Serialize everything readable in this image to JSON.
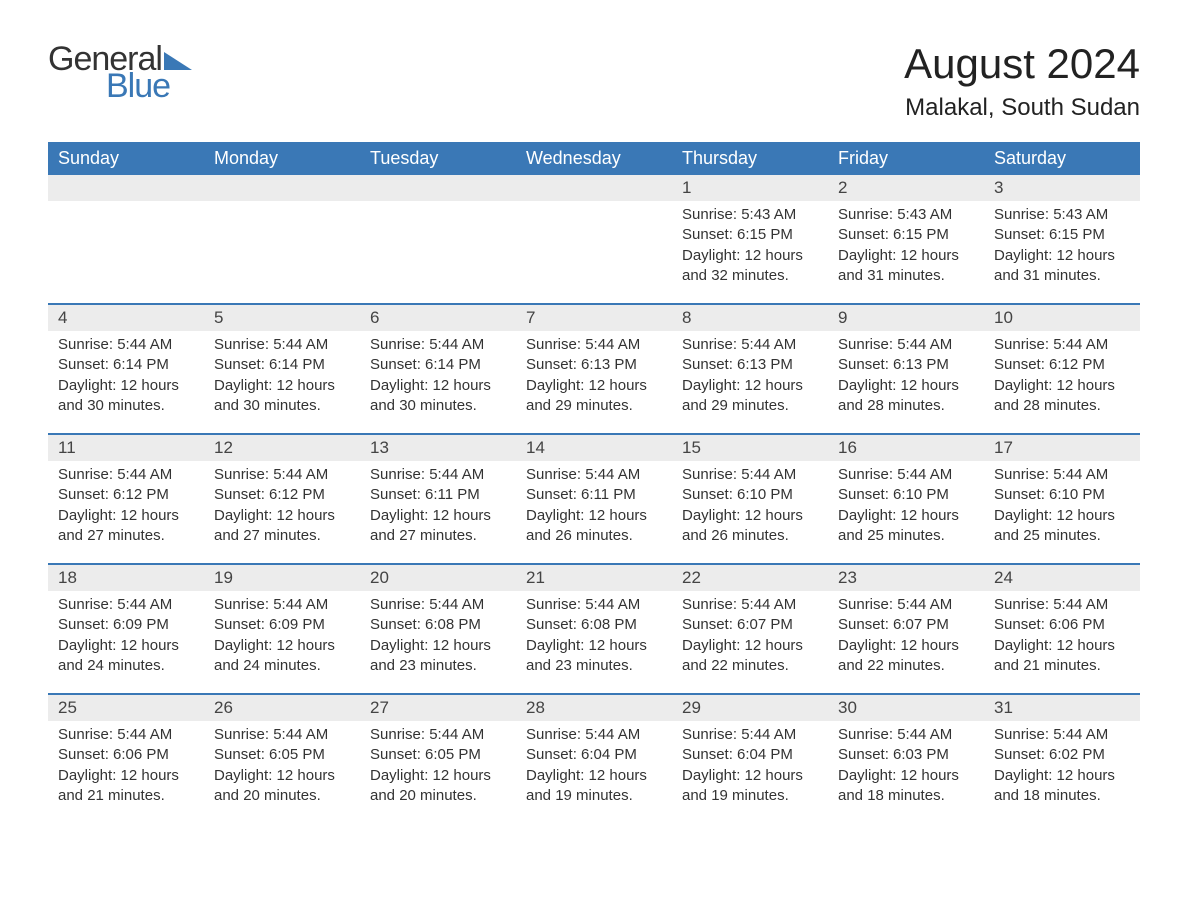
{
  "colors": {
    "header_bg": "#3a78b6",
    "header_text": "#ffffff",
    "daynum_bg": "#ececec",
    "text": "#333333",
    "row_border": "#3a78b6",
    "logo_blue": "#3a78b6",
    "page_bg": "#ffffff"
  },
  "typography": {
    "month_title_fontsize": 42,
    "location_fontsize": 24,
    "weekday_fontsize": 18,
    "daynum_fontsize": 17,
    "body_fontsize": 15,
    "logo_fontsize": 34
  },
  "logo": {
    "part1": "General",
    "part2": "Blue"
  },
  "title": "August 2024",
  "location": "Malakal, South Sudan",
  "weekdays": [
    "Sunday",
    "Monday",
    "Tuesday",
    "Wednesday",
    "Thursday",
    "Friday",
    "Saturday"
  ],
  "labels": {
    "sunrise": "Sunrise:",
    "sunset": "Sunset:",
    "daylight": "Daylight:"
  },
  "weeks": [
    [
      null,
      null,
      null,
      null,
      {
        "n": "1",
        "sunrise": "5:43 AM",
        "sunset": "6:15 PM",
        "daylight": "12 hours and 32 minutes."
      },
      {
        "n": "2",
        "sunrise": "5:43 AM",
        "sunset": "6:15 PM",
        "daylight": "12 hours and 31 minutes."
      },
      {
        "n": "3",
        "sunrise": "5:43 AM",
        "sunset": "6:15 PM",
        "daylight": "12 hours and 31 minutes."
      }
    ],
    [
      {
        "n": "4",
        "sunrise": "5:44 AM",
        "sunset": "6:14 PM",
        "daylight": "12 hours and 30 minutes."
      },
      {
        "n": "5",
        "sunrise": "5:44 AM",
        "sunset": "6:14 PM",
        "daylight": "12 hours and 30 minutes."
      },
      {
        "n": "6",
        "sunrise": "5:44 AM",
        "sunset": "6:14 PM",
        "daylight": "12 hours and 30 minutes."
      },
      {
        "n": "7",
        "sunrise": "5:44 AM",
        "sunset": "6:13 PM",
        "daylight": "12 hours and 29 minutes."
      },
      {
        "n": "8",
        "sunrise": "5:44 AM",
        "sunset": "6:13 PM",
        "daylight": "12 hours and 29 minutes."
      },
      {
        "n": "9",
        "sunrise": "5:44 AM",
        "sunset": "6:13 PM",
        "daylight": "12 hours and 28 minutes."
      },
      {
        "n": "10",
        "sunrise": "5:44 AM",
        "sunset": "6:12 PM",
        "daylight": "12 hours and 28 minutes."
      }
    ],
    [
      {
        "n": "11",
        "sunrise": "5:44 AM",
        "sunset": "6:12 PM",
        "daylight": "12 hours and 27 minutes."
      },
      {
        "n": "12",
        "sunrise": "5:44 AM",
        "sunset": "6:12 PM",
        "daylight": "12 hours and 27 minutes."
      },
      {
        "n": "13",
        "sunrise": "5:44 AM",
        "sunset": "6:11 PM",
        "daylight": "12 hours and 27 minutes."
      },
      {
        "n": "14",
        "sunrise": "5:44 AM",
        "sunset": "6:11 PM",
        "daylight": "12 hours and 26 minutes."
      },
      {
        "n": "15",
        "sunrise": "5:44 AM",
        "sunset": "6:10 PM",
        "daylight": "12 hours and 26 minutes."
      },
      {
        "n": "16",
        "sunrise": "5:44 AM",
        "sunset": "6:10 PM",
        "daylight": "12 hours and 25 minutes."
      },
      {
        "n": "17",
        "sunrise": "5:44 AM",
        "sunset": "6:10 PM",
        "daylight": "12 hours and 25 minutes."
      }
    ],
    [
      {
        "n": "18",
        "sunrise": "5:44 AM",
        "sunset": "6:09 PM",
        "daylight": "12 hours and 24 minutes."
      },
      {
        "n": "19",
        "sunrise": "5:44 AM",
        "sunset": "6:09 PM",
        "daylight": "12 hours and 24 minutes."
      },
      {
        "n": "20",
        "sunrise": "5:44 AM",
        "sunset": "6:08 PM",
        "daylight": "12 hours and 23 minutes."
      },
      {
        "n": "21",
        "sunrise": "5:44 AM",
        "sunset": "6:08 PM",
        "daylight": "12 hours and 23 minutes."
      },
      {
        "n": "22",
        "sunrise": "5:44 AM",
        "sunset": "6:07 PM",
        "daylight": "12 hours and 22 minutes."
      },
      {
        "n": "23",
        "sunrise": "5:44 AM",
        "sunset": "6:07 PM",
        "daylight": "12 hours and 22 minutes."
      },
      {
        "n": "24",
        "sunrise": "5:44 AM",
        "sunset": "6:06 PM",
        "daylight": "12 hours and 21 minutes."
      }
    ],
    [
      {
        "n": "25",
        "sunrise": "5:44 AM",
        "sunset": "6:06 PM",
        "daylight": "12 hours and 21 minutes."
      },
      {
        "n": "26",
        "sunrise": "5:44 AM",
        "sunset": "6:05 PM",
        "daylight": "12 hours and 20 minutes."
      },
      {
        "n": "27",
        "sunrise": "5:44 AM",
        "sunset": "6:05 PM",
        "daylight": "12 hours and 20 minutes."
      },
      {
        "n": "28",
        "sunrise": "5:44 AM",
        "sunset": "6:04 PM",
        "daylight": "12 hours and 19 minutes."
      },
      {
        "n": "29",
        "sunrise": "5:44 AM",
        "sunset": "6:04 PM",
        "daylight": "12 hours and 19 minutes."
      },
      {
        "n": "30",
        "sunrise": "5:44 AM",
        "sunset": "6:03 PM",
        "daylight": "12 hours and 18 minutes."
      },
      {
        "n": "31",
        "sunrise": "5:44 AM",
        "sunset": "6:02 PM",
        "daylight": "12 hours and 18 minutes."
      }
    ]
  ]
}
